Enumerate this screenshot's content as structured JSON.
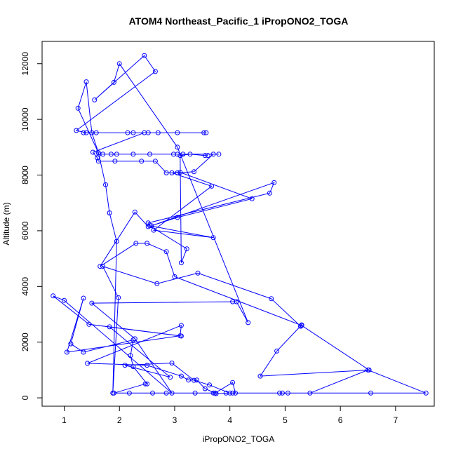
{
  "chart_data": {
    "type": "line",
    "title": "ATOM4 Northeast_Pacific_1 iPropONO2_TOGA",
    "xlabel": "iPropONO2_TOGA",
    "ylabel": "Altitude (m)",
    "xlim": [
      0.6,
      7.7
    ],
    "ylim": [
      -300,
      12800
    ],
    "x_ticks": [
      1,
      2,
      3,
      4,
      5,
      6,
      7
    ],
    "y_ticks": [
      0,
      2000,
      4000,
      6000,
      8000,
      10000,
      12000
    ],
    "grid": false,
    "series": [
      {
        "color": "#0000ff",
        "marker": "open-circle",
        "points": [
          [
            3.93,
            170
          ],
          [
            4.05,
            170
          ],
          [
            4.95,
            170
          ],
          [
            6.55,
            170
          ],
          [
            7.55,
            170
          ],
          [
            6.5,
            1000
          ],
          [
            5.45,
            170
          ],
          [
            5.05,
            170
          ],
          [
            4.9,
            170
          ],
          [
            4.1,
            170
          ],
          [
            4.05,
            550
          ],
          [
            3.73,
            170
          ],
          [
            3.7,
            170
          ],
          [
            3.37,
            170
          ],
          [
            2.85,
            170
          ],
          [
            2.6,
            170
          ],
          [
            2.18,
            170
          ],
          [
            1.9,
            170
          ],
          [
            2.47,
            500
          ],
          [
            2.5,
            500
          ],
          [
            2.25,
            1120
          ],
          [
            2.2,
            1520
          ],
          [
            2.25,
            2080
          ],
          [
            1.35,
            1640
          ],
          [
            1.12,
            1940
          ],
          [
            1.35,
            3580
          ],
          [
            1.05,
            1640
          ],
          [
            3.1,
            2230
          ],
          [
            3.12,
            2600
          ],
          [
            1.42,
            1240
          ],
          [
            2.5,
            1170
          ],
          [
            3.12,
            780
          ],
          [
            3.25,
            640
          ],
          [
            3.4,
            640
          ],
          [
            3.55,
            330
          ],
          [
            3.75,
            150
          ],
          [
            4.0,
            170
          ],
          [
            3.63,
            460
          ],
          [
            3.35,
            630
          ],
          [
            2.95,
            1250
          ],
          [
            2.1,
            1170
          ],
          [
            2.92,
            740
          ],
          [
            1.82,
            2550
          ],
          [
            3.12,
            2220
          ],
          [
            1.45,
            2640
          ],
          [
            0.8,
            3660
          ],
          [
            1.0,
            3500
          ],
          [
            2.95,
            170
          ],
          [
            2.28,
            2120
          ],
          [
            1.5,
            3400
          ],
          [
            4.05,
            3450
          ],
          [
            4.12,
            3450
          ],
          [
            4.33,
            2700
          ],
          [
            3.05,
            9000
          ],
          [
            2.0,
            12000
          ],
          [
            1.9,
            11330
          ],
          [
            1.55,
            10700
          ],
          [
            2.45,
            12290
          ],
          [
            2.65,
            11720
          ],
          [
            1.22,
            9600
          ],
          [
            1.4,
            9520
          ],
          [
            1.58,
            9520
          ],
          [
            2.15,
            9520
          ],
          [
            2.25,
            9520
          ],
          [
            2.52,
            9520
          ],
          [
            2.7,
            9520
          ],
          [
            3.05,
            9520
          ],
          [
            3.53,
            9520
          ],
          [
            3.57,
            9520
          ],
          [
            1.35,
            9520
          ],
          [
            2.45,
            9520
          ],
          [
            1.52,
            8820
          ],
          [
            1.6,
            8620
          ],
          [
            1.62,
            8500
          ],
          [
            1.92,
            8500
          ],
          [
            2.4,
            8500
          ],
          [
            2.65,
            8500
          ],
          [
            2.85,
            8080
          ],
          [
            3.05,
            8080
          ],
          [
            3.35,
            8120
          ],
          [
            3.7,
            8750
          ],
          [
            3.8,
            8750
          ],
          [
            3.05,
            8750
          ],
          [
            3.15,
            8750
          ],
          [
            2.98,
            8750
          ],
          [
            2.55,
            8750
          ],
          [
            2.25,
            8750
          ],
          [
            1.95,
            8750
          ],
          [
            1.85,
            8750
          ],
          [
            1.7,
            8750
          ],
          [
            1.63,
            8750
          ],
          [
            1.25,
            10400
          ],
          [
            1.4,
            11350
          ],
          [
            1.5,
            9520
          ],
          [
            1.62,
            8800
          ],
          [
            1.75,
            7650
          ],
          [
            1.82,
            6640
          ],
          [
            1.95,
            5620
          ],
          [
            1.88,
            170
          ],
          [
            1.98,
            3600
          ],
          [
            1.7,
            4720
          ],
          [
            2.68,
            4100
          ],
          [
            3.42,
            4480
          ],
          [
            4.75,
            3560
          ],
          [
            5.28,
            2570
          ],
          [
            5.3,
            2620
          ],
          [
            4.85,
            1680
          ],
          [
            4.55,
            780
          ],
          [
            6.52,
            1000
          ],
          [
            5.3,
            2600
          ],
          [
            3.0,
            4350
          ],
          [
            2.85,
            5250
          ],
          [
            2.5,
            5550
          ],
          [
            2.3,
            5550
          ],
          [
            1.65,
            4720
          ],
          [
            2.28,
            6670
          ],
          [
            2.52,
            6150
          ],
          [
            2.52,
            6280
          ],
          [
            4.72,
            7350
          ],
          [
            4.8,
            7730
          ],
          [
            2.58,
            6180
          ],
          [
            3.05,
            6480
          ],
          [
            4.4,
            7150
          ],
          [
            3.1,
            8100
          ],
          [
            2.95,
            8080
          ],
          [
            3.67,
            7600
          ],
          [
            2.62,
            6020
          ],
          [
            3.7,
            5750
          ],
          [
            2.55,
            6180
          ],
          [
            3.22,
            5350
          ],
          [
            3.12,
            4850
          ],
          [
            3.1,
            8700
          ],
          [
            3.28,
            8750
          ],
          [
            3.55,
            8700
          ],
          [
            3.6,
            8700
          ]
        ]
      }
    ]
  }
}
